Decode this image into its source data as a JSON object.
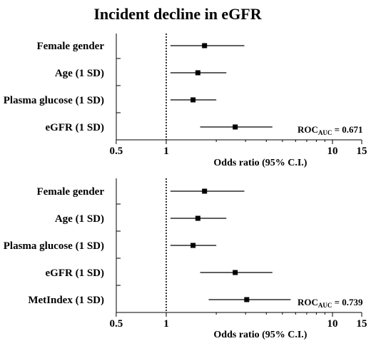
{
  "title": "Incident decline in eGFR",
  "chart_data": [
    {
      "type": "forest",
      "xscale": "log",
      "xlabel": "Odds ratio (95% C.I.)",
      "xticks": [
        0.5,
        1,
        10,
        15
      ],
      "xtick_labels": [
        "0.5",
        "1",
        "10",
        "15"
      ],
      "reference_line": 1,
      "rows": [
        {
          "label": "Female gender",
          "or": 1.7,
          "lo": 1.06,
          "hi": 2.95
        },
        {
          "label": "Age (1 SD)",
          "or": 1.55,
          "lo": 1.06,
          "hi": 2.3
        },
        {
          "label": "Plasma glucose (1 SD)",
          "or": 1.45,
          "lo": 1.06,
          "hi": 2.0
        },
        {
          "label": "eGFR (1 SD)",
          "or": 2.6,
          "lo": 1.6,
          "hi": 4.35
        }
      ],
      "roc": {
        "prefix": "ROC",
        "sub": "AUC",
        "value": " = 0.671"
      }
    },
    {
      "type": "forest",
      "xscale": "log",
      "xlabel": "Odds ratio (95% C.I.)",
      "xticks": [
        0.5,
        1,
        10,
        15
      ],
      "xtick_labels": [
        "0.5",
        "1",
        "10",
        "15"
      ],
      "reference_line": 1,
      "rows": [
        {
          "label": "Female gender",
          "or": 1.7,
          "lo": 1.06,
          "hi": 2.95
        },
        {
          "label": "Age (1 SD)",
          "or": 1.55,
          "lo": 1.06,
          "hi": 2.3
        },
        {
          "label": "Plasma glucose (1 SD)",
          "or": 1.45,
          "lo": 1.06,
          "hi": 2.0
        },
        {
          "label": "eGFR (1 SD)",
          "or": 2.6,
          "lo": 1.6,
          "hi": 4.35
        },
        {
          "label": "MetIndex (1 SD)",
          "or": 3.05,
          "lo": 1.8,
          "hi": 5.6
        }
      ],
      "roc": {
        "prefix": "ROC",
        "sub": "AUC",
        "value": " = 0.739"
      }
    }
  ]
}
